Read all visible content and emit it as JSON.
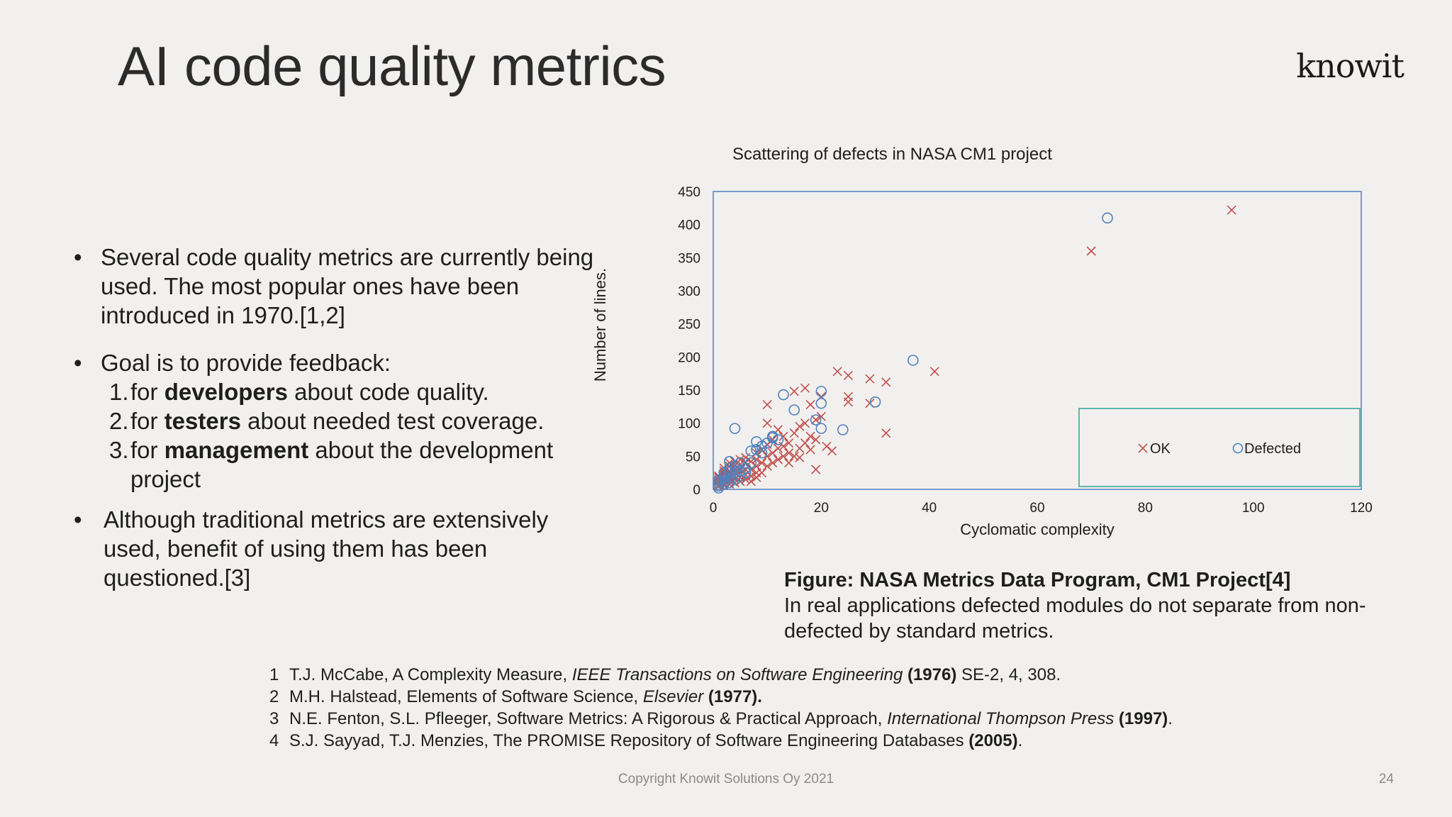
{
  "slide": {
    "title": "AI code quality metrics",
    "logo": "knowit",
    "bullets": {
      "b1": "Several code quality metrics are currently being used. The most popular ones have been introduced in 1970.[1,2]",
      "b2": "Goal is to provide feedback:",
      "b3": "Although traditional metrics are extensively used, benefit of using them has been questioned.[3]",
      "items": [
        {
          "num": "1.",
          "pre": "for ",
          "bold": "developers",
          "post": " about code quality."
        },
        {
          "num": "2.",
          "pre": "for ",
          "bold": "testers",
          "post": " about needed test coverage."
        },
        {
          "num": "3.",
          "pre": "for ",
          "bold": "management",
          "post": " about the development project"
        }
      ]
    },
    "caption": {
      "heading": "Figure: NASA Metrics Data Program, CM1 Project[4]",
      "text": "In real applications defected modules do not separate from non-defected by standard metrics."
    },
    "references": [
      {
        "num": "1",
        "text": "T.J. McCabe, A Complexity Measure, ",
        "italic": "IEEE Transactions on Software Engineering",
        "bold": " (1976)",
        "tail": " SE-2, 4, 308."
      },
      {
        "num": "2",
        "text": "M.H. Halstead, Elements of Software Science, ",
        "italic": "Elsevier",
        "bold": " (1977).",
        "tail": ""
      },
      {
        "num": "3",
        "text": "N.E. Fenton, S.L. Pfleeger, Software Metrics: A Rigorous & Practical Approach, ",
        "italic": "International Thompson Press",
        "bold": " (1997)",
        "tail": "."
      },
      {
        "num": "4",
        "text": "S.J. Sayyad, T.J. Menzies, The PROMISE Repository of Software Engineering Databases",
        "italic": "",
        "bold": " (2005)",
        "tail": "."
      }
    ],
    "footer": "Copyright Knowit Solutions Oy 2021",
    "page_number": "24"
  },
  "chart_data": {
    "type": "scatter",
    "title": "Scattering of defects in NASA CM1 project",
    "xlabel": "Cyclomatic complexity",
    "ylabel": "Number of lines.",
    "xlim": [
      0,
      120
    ],
    "ylim": [
      0,
      450
    ],
    "x_ticks": [
      0,
      20,
      40,
      60,
      80,
      100,
      120
    ],
    "y_ticks": [
      0,
      50,
      100,
      150,
      200,
      250,
      300,
      350,
      400,
      450
    ],
    "legend_position": "bottom-right",
    "series": [
      {
        "name": "OK",
        "marker": "x",
        "color": "#c0504d",
        "points": [
          [
            1,
            5
          ],
          [
            1,
            8
          ],
          [
            1,
            12
          ],
          [
            1,
            15
          ],
          [
            1,
            18
          ],
          [
            1,
            20
          ],
          [
            2,
            6
          ],
          [
            2,
            10
          ],
          [
            2,
            14
          ],
          [
            2,
            18
          ],
          [
            2,
            22
          ],
          [
            2,
            25
          ],
          [
            2,
            28
          ],
          [
            2,
            32
          ],
          [
            3,
            8
          ],
          [
            3,
            12
          ],
          [
            3,
            16
          ],
          [
            3,
            20
          ],
          [
            3,
            24
          ],
          [
            3,
            28
          ],
          [
            3,
            35
          ],
          [
            3,
            40
          ],
          [
            4,
            10
          ],
          [
            4,
            15
          ],
          [
            4,
            20
          ],
          [
            4,
            25
          ],
          [
            4,
            30
          ],
          [
            4,
            36
          ],
          [
            4,
            42
          ],
          [
            5,
            12
          ],
          [
            5,
            18
          ],
          [
            5,
            24
          ],
          [
            5,
            30
          ],
          [
            5,
            38
          ],
          [
            5,
            45
          ],
          [
            6,
            15
          ],
          [
            6,
            22
          ],
          [
            6,
            30
          ],
          [
            6,
            40
          ],
          [
            6,
            48
          ],
          [
            7,
            12
          ],
          [
            7,
            20
          ],
          [
            7,
            30
          ],
          [
            7,
            42
          ],
          [
            8,
            18
          ],
          [
            8,
            25
          ],
          [
            8,
            35
          ],
          [
            8,
            45
          ],
          [
            8,
            55
          ],
          [
            9,
            25
          ],
          [
            9,
            40
          ],
          [
            9,
            60
          ],
          [
            10,
            35
          ],
          [
            10,
            50
          ],
          [
            10,
            68
          ],
          [
            10,
            100
          ],
          [
            10,
            128
          ],
          [
            11,
            40
          ],
          [
            11,
            55
          ],
          [
            11,
            75
          ],
          [
            12,
            45
          ],
          [
            12,
            62
          ],
          [
            12,
            90
          ],
          [
            13,
            50
          ],
          [
            13,
            65
          ],
          [
            13,
            80
          ],
          [
            14,
            40
          ],
          [
            14,
            55
          ],
          [
            14,
            70
          ],
          [
            15,
            50
          ],
          [
            15,
            85
          ],
          [
            15,
            148
          ],
          [
            16,
            48
          ],
          [
            16,
            62
          ],
          [
            16,
            95
          ],
          [
            17,
            70
          ],
          [
            17,
            100
          ],
          [
            17,
            153
          ],
          [
            18,
            60
          ],
          [
            18,
            80
          ],
          [
            18,
            128
          ],
          [
            19,
            30
          ],
          [
            19,
            75
          ],
          [
            19,
            105
          ],
          [
            20,
            110
          ],
          [
            20,
            140
          ],
          [
            21,
            65
          ],
          [
            22,
            58
          ],
          [
            23,
            178
          ],
          [
            25,
            172
          ],
          [
            25,
            132
          ],
          [
            25,
            140
          ],
          [
            29,
            167
          ],
          [
            29,
            130
          ],
          [
            32,
            162
          ],
          [
            32,
            85
          ],
          [
            41,
            178
          ],
          [
            70,
            360
          ],
          [
            96,
            422
          ]
        ]
      },
      {
        "name": "Defected",
        "marker": "o",
        "color": "#4f81bd",
        "points": [
          [
            1,
            2
          ],
          [
            1,
            5
          ],
          [
            1,
            10
          ],
          [
            1,
            14
          ],
          [
            2,
            8
          ],
          [
            2,
            15
          ],
          [
            2,
            20
          ],
          [
            2,
            25
          ],
          [
            3,
            10
          ],
          [
            3,
            18
          ],
          [
            3,
            26
          ],
          [
            3,
            32
          ],
          [
            3,
            42
          ],
          [
            4,
            15
          ],
          [
            4,
            25
          ],
          [
            4,
            35
          ],
          [
            4,
            92
          ],
          [
            5,
            20
          ],
          [
            5,
            28
          ],
          [
            5,
            40
          ],
          [
            6,
            25
          ],
          [
            6,
            32
          ],
          [
            7,
            40
          ],
          [
            7,
            58
          ],
          [
            8,
            60
          ],
          [
            8,
            72
          ],
          [
            9,
            55
          ],
          [
            9,
            65
          ],
          [
            10,
            70
          ],
          [
            11,
            78
          ],
          [
            11,
            80
          ],
          [
            12,
            75
          ],
          [
            13,
            143
          ],
          [
            15,
            120
          ],
          [
            19,
            105
          ],
          [
            20,
            148
          ],
          [
            20,
            130
          ],
          [
            20,
            92
          ],
          [
            24,
            90
          ],
          [
            30,
            132
          ],
          [
            37,
            195
          ],
          [
            73,
            410
          ]
        ]
      }
    ]
  }
}
